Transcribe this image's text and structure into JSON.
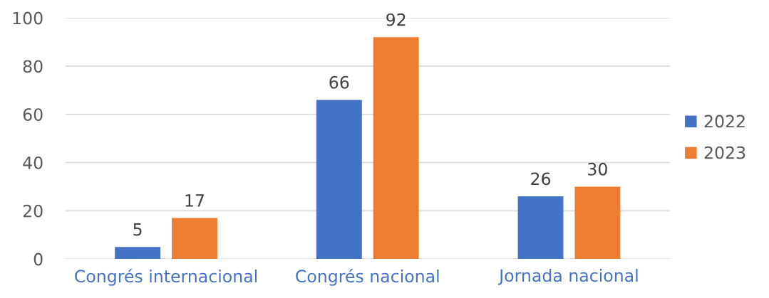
{
  "chart_data": {
    "type": "bar",
    "categories": [
      "Congrés internacional",
      "Congrés nacional",
      "Jornada nacional"
    ],
    "series": [
      {
        "name": "2022",
        "color": "#4472c4",
        "values": [
          5,
          66,
          26
        ]
      },
      {
        "name": "2023",
        "color": "#ed7d31",
        "values": [
          17,
          92,
          30
        ]
      }
    ],
    "ylim": [
      0,
      100
    ],
    "yticks": [
      0,
      20,
      40,
      60,
      80,
      100
    ],
    "grid": "y",
    "legend": "right",
    "data_labels": true
  }
}
